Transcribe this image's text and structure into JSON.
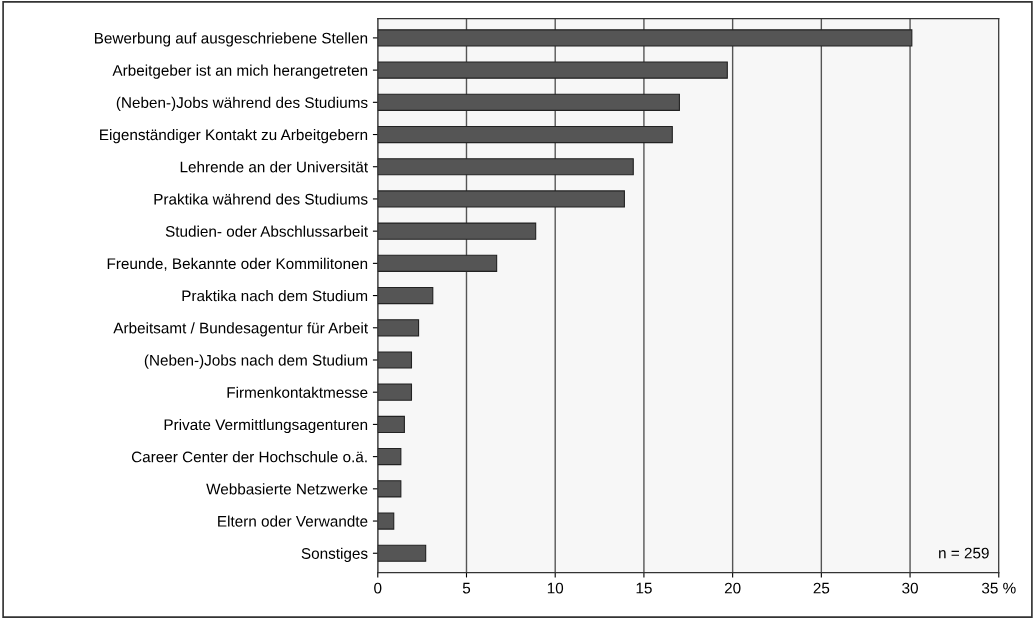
{
  "chart_data": {
    "type": "bar",
    "orientation": "horizontal",
    "categories": [
      "Bewerbung auf ausgeschriebene Stellen",
      "Arbeitgeber ist an mich herangetreten",
      "(Neben-)Jobs während des Studiums",
      "Eigenständiger Kontakt zu Arbeitgebern",
      "Lehrende an der Universität",
      "Praktika während des Studiums",
      "Studien- oder Abschlussarbeit",
      "Freunde, Bekannte oder Kommilitonen",
      "Praktika nach dem Studium",
      "Arbeitsamt / Bundesagentur für Arbeit",
      "(Neben-)Jobs nach dem Studium",
      "Firmenkontaktmesse",
      "Private Vermittlungsagenturen",
      "Career Center der Hochschule o.ä.",
      "Webbasierte Netzwerke",
      "Eltern oder Verwandte",
      "Sonstiges"
    ],
    "values": [
      30.1,
      19.7,
      17.0,
      16.6,
      14.4,
      13.9,
      8.9,
      6.7,
      3.1,
      2.3,
      1.9,
      1.9,
      1.5,
      1.3,
      1.3,
      0.9,
      2.7
    ],
    "color": "#555555",
    "xlim": [
      0,
      35
    ],
    "xticks": [
      0,
      5,
      10,
      15,
      20,
      25,
      30,
      {
        "value": 35,
        "label": "35 %"
      }
    ],
    "grid": "x",
    "annotations": [
      "n = 259"
    ]
  }
}
